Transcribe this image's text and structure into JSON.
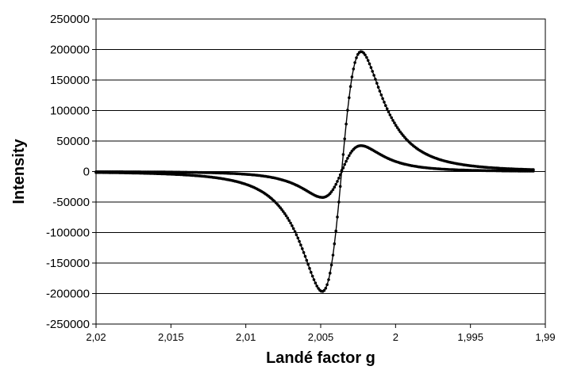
{
  "chart_data": {
    "type": "scatter",
    "title": "",
    "xlabel": "Landé factor g",
    "ylabel": "Intensity",
    "x_reversed": true,
    "xlim": [
      1.99,
      2.02
    ],
    "ylim": [
      -250000,
      250000
    ],
    "grid": "horizontal",
    "legend": "none",
    "y_ticks": [
      "250000",
      "200000",
      "150000",
      "100000",
      "50000",
      "0",
      "-50000",
      "-100000",
      "-150000",
      "-200000",
      "-250000"
    ],
    "y_tick_values": [
      250000,
      200000,
      150000,
      100000,
      50000,
      0,
      -50000,
      -100000,
      -150000,
      -200000,
      -250000
    ],
    "x_ticks": [
      "2,02",
      "2,015",
      "2,01",
      "2,005",
      "2",
      "1,995",
      "1,99"
    ],
    "x_tick_values": [
      2.02,
      2.015,
      2.01,
      2.005,
      2.0,
      1.995,
      1.99
    ],
    "series_color": "#000000",
    "series": [
      {
        "center": 2.0036,
        "amplitude": 227000,
        "half_width": 0.0013,
        "x_start": 2.02,
        "x_end": 1.9908,
        "points": 300
      },
      {
        "center": 2.0036,
        "amplitude": 49000,
        "half_width": 0.0013,
        "x_start": 2.02,
        "x_end": 1.9908,
        "points": 300
      }
    ]
  }
}
